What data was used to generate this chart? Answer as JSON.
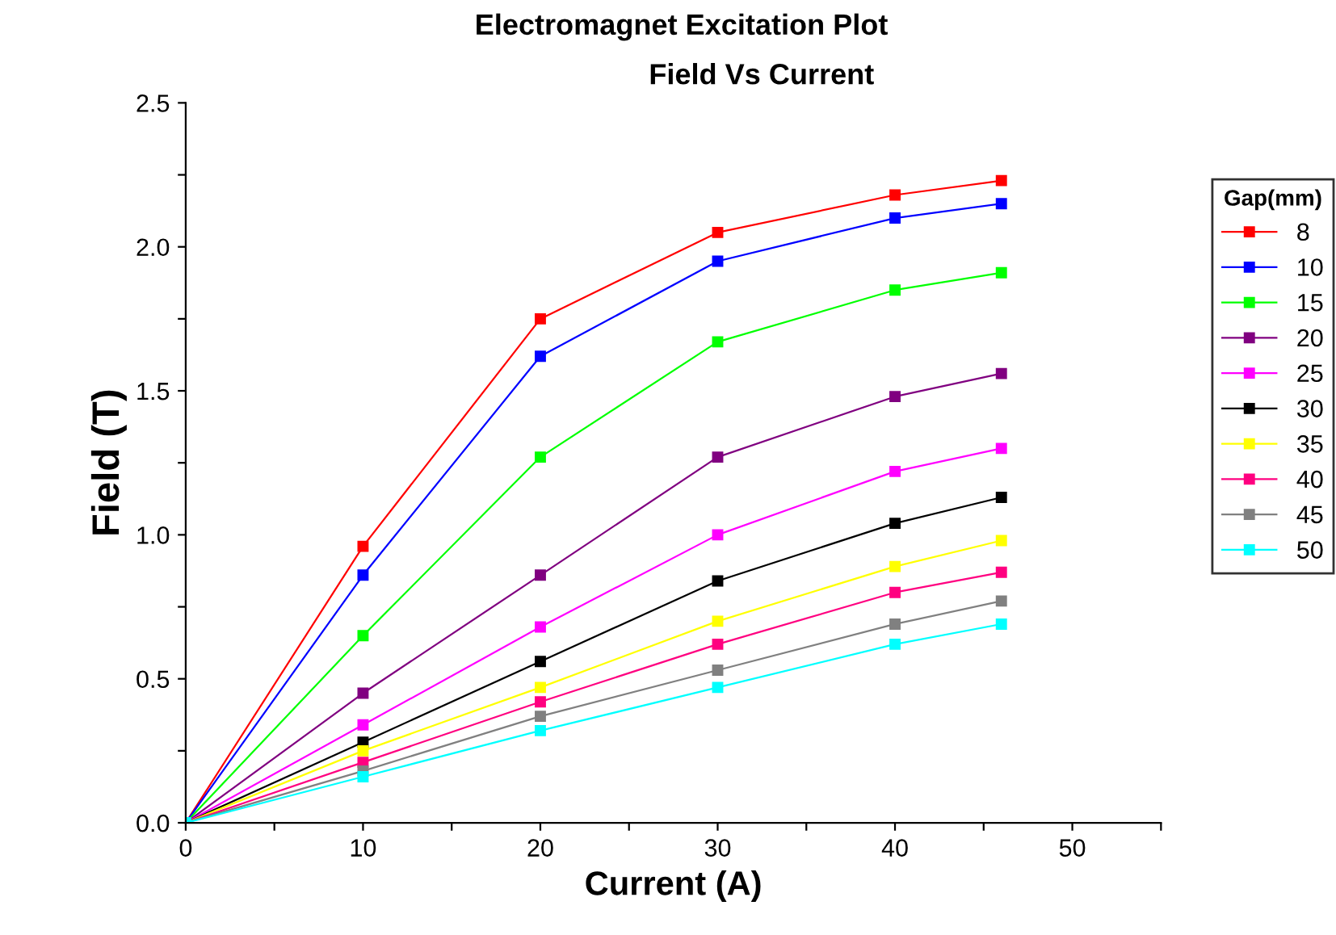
{
  "chart_data": {
    "type": "line",
    "title": "Electromagnet Excitation Plot",
    "subtitle": "Field Vs Current",
    "xlabel": "Current (A)",
    "ylabel": "Field (T)",
    "legend_title": "Gap(mm)",
    "x": [
      0,
      10,
      20,
      30,
      40,
      46
    ],
    "series": [
      {
        "name": "8",
        "color": "#ff0000",
        "values": [
          0,
          0.96,
          1.75,
          2.05,
          2.18,
          2.23
        ]
      },
      {
        "name": "10",
        "color": "#0000ff",
        "values": [
          0,
          0.86,
          1.62,
          1.95,
          2.1,
          2.15
        ]
      },
      {
        "name": "15",
        "color": "#00ff00",
        "values": [
          0,
          0.65,
          1.27,
          1.67,
          1.85,
          1.91
        ]
      },
      {
        "name": "20",
        "color": "#800080",
        "values": [
          0,
          0.45,
          0.86,
          1.27,
          1.48,
          1.56
        ]
      },
      {
        "name": "25",
        "color": "#ff00ff",
        "values": [
          0,
          0.34,
          0.68,
          1.0,
          1.22,
          1.3
        ]
      },
      {
        "name": "30",
        "color": "#000000",
        "values": [
          0,
          0.28,
          0.56,
          0.84,
          1.04,
          1.13
        ]
      },
      {
        "name": "35",
        "color": "#ffff00",
        "values": [
          0,
          0.25,
          0.47,
          0.7,
          0.89,
          0.98
        ]
      },
      {
        "name": "40",
        "color": "#ff0080",
        "values": [
          0,
          0.21,
          0.42,
          0.62,
          0.8,
          0.87
        ]
      },
      {
        "name": "45",
        "color": "#808080",
        "values": [
          0,
          0.18,
          0.37,
          0.53,
          0.69,
          0.77
        ]
      },
      {
        "name": "50",
        "color": "#00ffff",
        "values": [
          0,
          0.16,
          0.32,
          0.47,
          0.62,
          0.69
        ]
      }
    ],
    "xlim": [
      0,
      55
    ],
    "ylim": [
      0,
      2.5
    ],
    "xticks": [
      0,
      {
        "value": 5,
        "label": null
      },
      10,
      {
        "value": 15,
        "label": null
      },
      20,
      {
        "value": 25,
        "label": null
      },
      30,
      {
        "value": 35,
        "label": null
      },
      40,
      {
        "value": 45,
        "label": null
      },
      50,
      {
        "value": 55,
        "label": null
      }
    ],
    "yticks": [
      "0.0",
      {
        "value": 0.25,
        "label": null
      },
      {
        "value": 0.5,
        "label": "0.5"
      },
      {
        "value": 0.75,
        "label": null
      },
      {
        "value": 1,
        "label": "1.0"
      },
      {
        "value": 1.25,
        "label": null
      },
      {
        "value": 1.5,
        "label": "1.5"
      },
      {
        "value": 1.75,
        "label": null
      },
      {
        "value": 2,
        "label": "2.0"
      },
      {
        "value": 2.25,
        "label": null
      },
      {
        "value": 2.5,
        "label": "2.5"
      }
    ],
    "grid": false,
    "legend": "right",
    "marker": "square",
    "line_style": "solid"
  }
}
